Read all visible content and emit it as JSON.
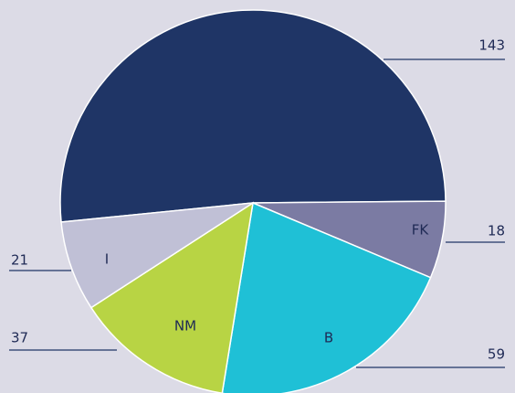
{
  "chart_data": {
    "type": "pie",
    "categories": [
      null,
      "FK",
      "B",
      "NM",
      "I"
    ],
    "values": [
      143,
      18,
      59,
      37,
      21
    ],
    "colors": [
      "#1f3566",
      "#7b7ba3",
      "#1fc0d6",
      "#b8d444",
      "#c0c0d6"
    ]
  }
}
